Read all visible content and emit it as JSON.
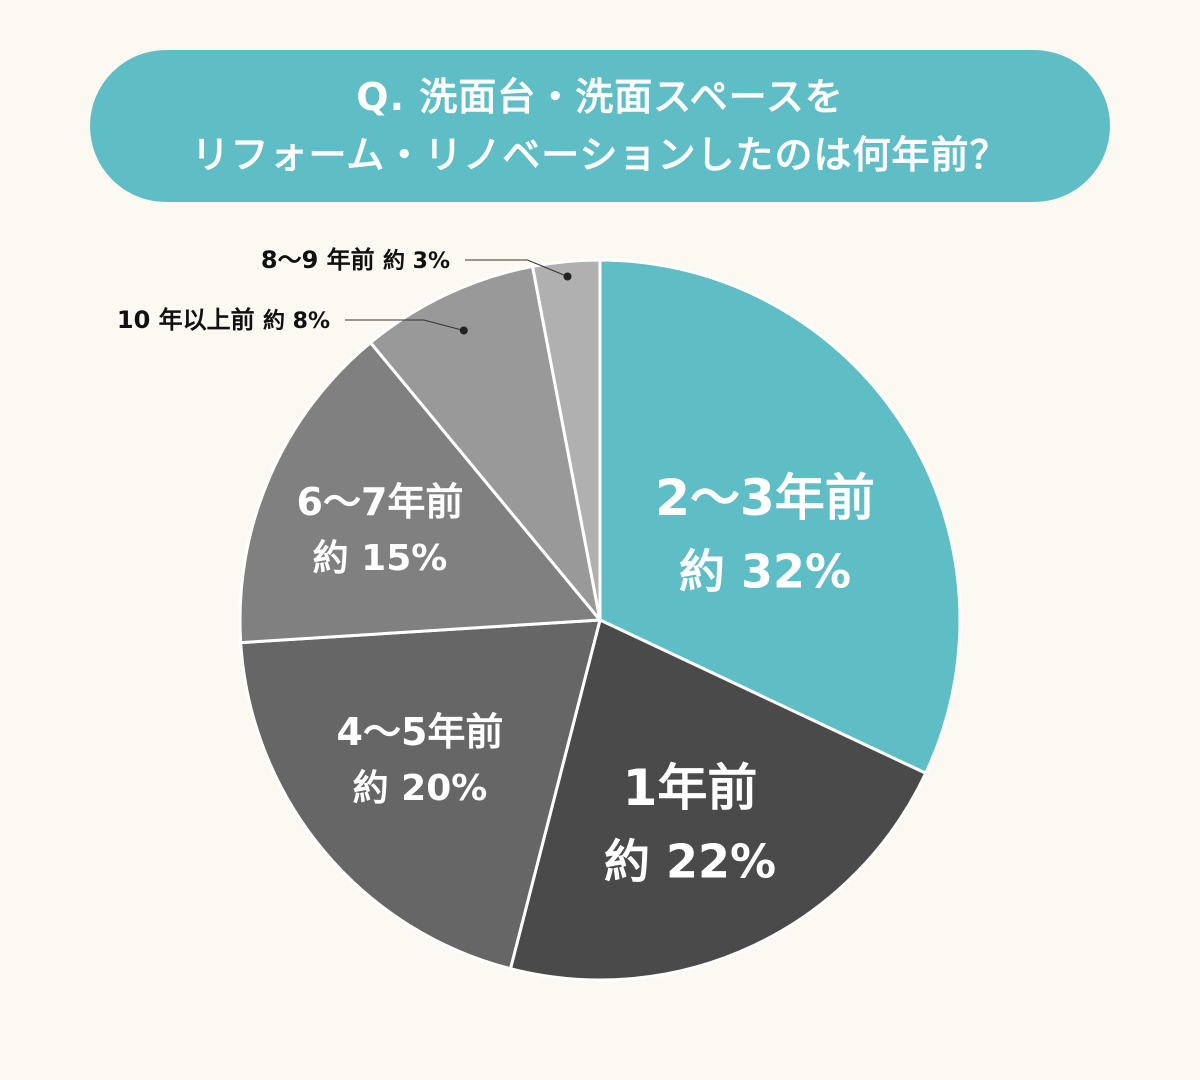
{
  "title": {
    "line1": "Q. 洗面台・洗面スペースを",
    "line2": "リフォーム・リノベーションしたのは何年前？"
  },
  "chart_data": {
    "type": "pie",
    "start_angle_deg": 0,
    "direction": "clockwise",
    "slices": [
      {
        "category": "2〜3年前",
        "value": 32,
        "value_label": "約 32%",
        "color": "#5fbdc6"
      },
      {
        "category": "1年前",
        "value": 22,
        "value_label": "約 22%",
        "color": "#4a4a4a"
      },
      {
        "category": "4〜5年前",
        "value": 20,
        "value_label": "約 20%",
        "color": "#666666"
      },
      {
        "category": "6〜7年前",
        "value": 15,
        "value_label": "約 15%",
        "color": "#808080"
      },
      {
        "category": "10 年以上前",
        "value": 8,
        "value_label": "約 8%",
        "color": "#999999"
      },
      {
        "category": "8〜9 年前",
        "value": 3,
        "value_label": "約 3%",
        "color": "#b0b0b0"
      }
    ]
  }
}
